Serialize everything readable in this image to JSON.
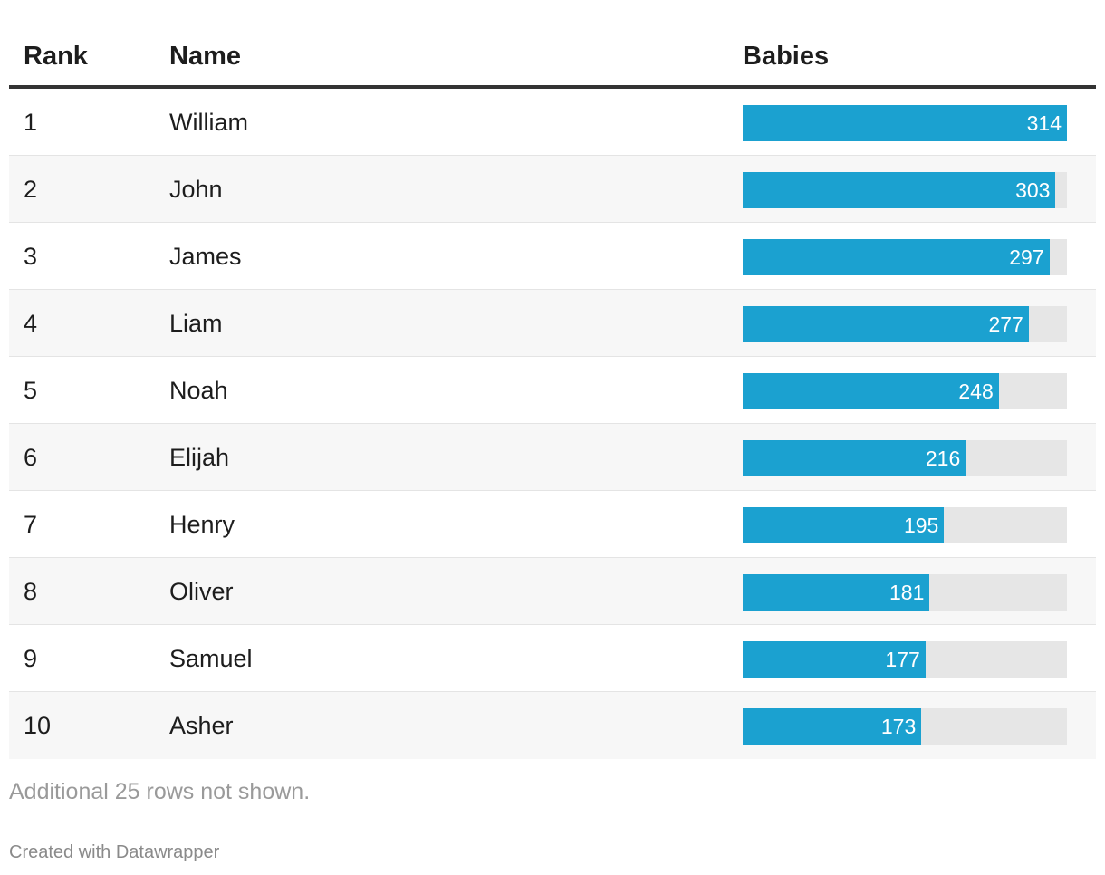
{
  "table": {
    "headers": {
      "rank": "Rank",
      "name": "Name",
      "babies": "Babies"
    }
  },
  "chart_data": {
    "type": "table",
    "columns": [
      "Rank",
      "Name",
      "Babies"
    ],
    "max_value": 314,
    "rows": [
      {
        "rank": "1",
        "name": "William",
        "babies": 314
      },
      {
        "rank": "2",
        "name": "John",
        "babies": 303
      },
      {
        "rank": "3",
        "name": "James",
        "babies": 297
      },
      {
        "rank": "4",
        "name": "Liam",
        "babies": 277
      },
      {
        "rank": "5",
        "name": "Noah",
        "babies": 248
      },
      {
        "rank": "6",
        "name": "Elijah",
        "babies": 216
      },
      {
        "rank": "7",
        "name": "Henry",
        "babies": 195
      },
      {
        "rank": "8",
        "name": "Oliver",
        "babies": 181
      },
      {
        "rank": "9",
        "name": "Samuel",
        "babies": 177
      },
      {
        "rank": "10",
        "name": "Asher",
        "babies": 173
      }
    ]
  },
  "colors": {
    "bar": "#1ba1d0",
    "track": "#e6e6e6"
  },
  "footer": {
    "note": "Additional 25 rows not shown.",
    "credit": "Created with Datawrapper"
  }
}
